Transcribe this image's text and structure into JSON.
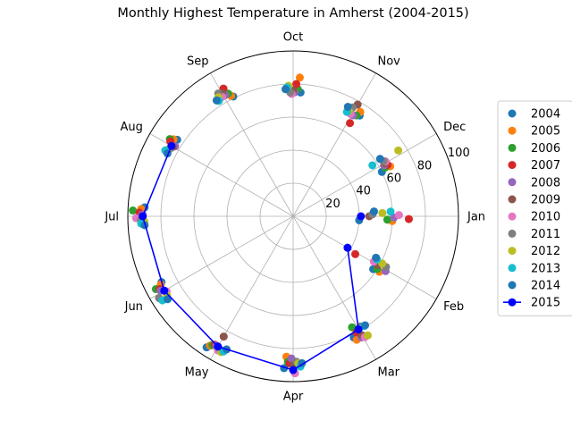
{
  "chart_data": {
    "type": "scatter",
    "projection": "polar",
    "title": "Monthly Highest Temperature in Amherst (2004-2015)",
    "theta_labels": [
      "Jan",
      "Feb",
      "Mar",
      "Apr",
      "May",
      "Jun",
      "Jul",
      "Aug",
      "Sep",
      "Oct",
      "Nov",
      "Dec"
    ],
    "theta_direction": "clockwise",
    "theta_zero": "east",
    "rlim": [
      0,
      100
    ],
    "r_ticks": [
      "20",
      "40",
      "60",
      "80",
      "100"
    ],
    "grid": true,
    "legend_position": "right",
    "series": [
      {
        "name": "2004",
        "color": "#1f77b4",
        "values": [
          40,
          58,
          82,
          92,
          95,
          89,
          90,
          84,
          81,
          75,
          73,
          60
        ]
      },
      {
        "name": "2005",
        "color": "#ff7f0e",
        "values": [
          60,
          62,
          84,
          85,
          93,
          90,
          92,
          86,
          82,
          84,
          75,
          66
        ]
      },
      {
        "name": "2006",
        "color": "#2ca02c",
        "values": [
          57,
          60,
          76,
          88,
          92,
          94,
          97,
          88,
          84,
          77,
          72,
          63
        ]
      },
      {
        "name": "2007",
        "color": "#d62728",
        "values": [
          70,
          44,
          80,
          89,
          91,
          92,
          93,
          87,
          88,
          80,
          66,
          65
        ]
      },
      {
        "name": "2008",
        "color": "#9467bd",
        "values": [
          61,
          65,
          84,
          86,
          91,
          92,
          91,
          83,
          84,
          75,
          71,
          63
        ]
      },
      {
        "name": "2009",
        "color": "#8c564b",
        "values": [
          46,
          59,
          83,
          90,
          84,
          90,
          91,
          84,
          86,
          76,
          78,
          64
        ]
      },
      {
        "name": "2010",
        "color": "#e377c2",
        "values": [
          64,
          56,
          85,
          95,
          93,
          89,
          95,
          85,
          84,
          74,
          71,
          65
        ]
      },
      {
        "name": "2011",
        "color": "#7f7f7f",
        "values": [
          48,
          64,
          78,
          88,
          92,
          95,
          92,
          85,
          87,
          75,
          75,
          64
        ]
      },
      {
        "name": "2012",
        "color": "#bcbd22",
        "values": [
          54,
          61,
          85,
          89,
          93,
          90,
          90,
          86,
          85,
          79,
          72,
          75
        ]
      },
      {
        "name": "2013",
        "color": "#17becf",
        "values": [
          59,
          57,
          79,
          91,
          92,
          94,
          92,
          87,
          83,
          78,
          71,
          57
        ]
      },
      {
        "name": "2014",
        "color": "#1f77b4",
        "values": [
          49,
          56,
          79,
          89,
          90,
          91,
          90,
          85,
          84,
          77,
          74,
          63
        ]
      },
      {
        "name": "2015",
        "color": "#0000ff",
        "values": [
          41,
          38,
          79,
          93,
          91,
          90,
          91,
          85,
          84,
          78,
          74,
          63
        ]
      }
    ]
  }
}
